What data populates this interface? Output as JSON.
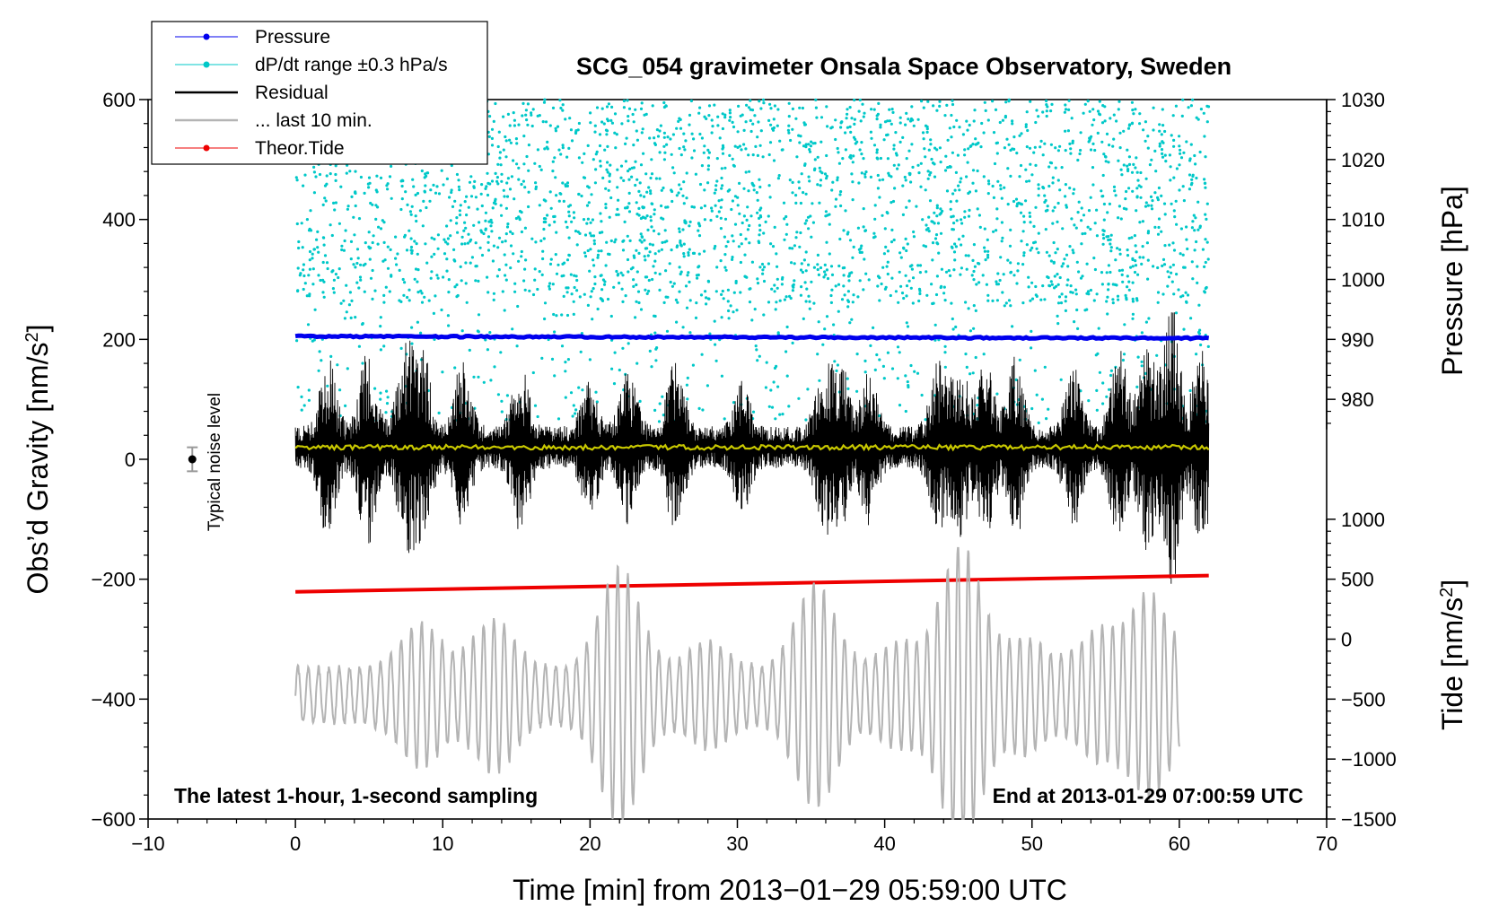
{
  "chart_data": {
    "type": "line",
    "title": "SCG_054 gravimeter Onsala Space Observatory, Sweden",
    "xlabel": "Time [min] from 2013−01−29 05:59:00 UTC",
    "ylabel": "Obs’d Gravity [nm/s²]",
    "ylabel_main": "Obs’d Gravity [nm/s",
    "ylabel_sup": "2",
    "ylabel_end": "]",
    "xlim": [
      -10,
      70
    ],
    "ylim": [
      -600,
      600
    ],
    "x_ticks": [
      -10,
      0,
      10,
      20,
      30,
      40,
      50,
      60,
      70
    ],
    "x_tick_labels": [
      "−10",
      "0",
      "10",
      "20",
      "30",
      "40",
      "50",
      "60",
      "70"
    ],
    "y_ticks": [
      -600,
      -400,
      -200,
      0,
      200,
      400,
      600
    ],
    "y_tick_labels": [
      "−600",
      "−400",
      "−200",
      "0",
      "200",
      "400",
      "600"
    ],
    "pressure_axis": {
      "label": "Pressure [hPa]",
      "ticks": [
        980,
        990,
        1000,
        1010,
        1020,
        1030
      ],
      "tick_labels": [
        "980",
        "990",
        "1000",
        "1010",
        "1020",
        "1030"
      ]
    },
    "tide_axis": {
      "label_main": "Tide [nm/s",
      "label_sup": "2",
      "label_end": "]",
      "ticks": [
        -1500,
        -1000,
        -500,
        0,
        500,
        1000
      ],
      "tick_labels": [
        "−1500",
        "−1000",
        "−500",
        "0",
        "500",
        "1000"
      ]
    },
    "legend": [
      {
        "label": "Pressure",
        "color": "#0000ee",
        "style": "line-dot"
      },
      {
        "label": "dP/dt range ±0.3 hPa/s",
        "color": "#00c8c8",
        "style": "line-dot"
      },
      {
        "label": "Residual",
        "color": "#000000",
        "style": "line"
      },
      {
        "label": "... last 10 min.",
        "color": "#b4b4b4",
        "style": "line"
      },
      {
        "label": "Theor.Tide",
        "color": "#ee0000",
        "style": "line-dot"
      }
    ],
    "legend_position": "top-left",
    "annotations": {
      "bottom_left": "The latest 1-hour, 1-second sampling",
      "bottom_right": "End at 2013-01-29 07:00:59 UTC",
      "noise_label": "Typical noise level"
    },
    "noise_marker": {
      "x": -7,
      "y": 0,
      "err": 20
    },
    "series": [
      {
        "name": "Pressure",
        "axis": "pressure",
        "x_range": [
          0,
          62
        ],
        "value_start": 990.5,
        "value_end": 990.2,
        "color": "#0000ee"
      },
      {
        "name": "dP/dt range ±0.3 hPa/s",
        "axis": "pressure",
        "x_range": [
          0,
          62
        ],
        "value_range": [
          975,
          1030
        ],
        "color": "#00c8c8"
      },
      {
        "name": "Residual",
        "axis": "gravity",
        "x_range": [
          0,
          62
        ],
        "value_range": [
          -215,
          245
        ],
        "center": 20,
        "color": "#000000"
      },
      {
        "name": "Residual trend",
        "axis": "gravity",
        "x_range": [
          0,
          62
        ],
        "value": 20,
        "color": "#c8c800"
      },
      {
        "name": "Theor.Tide",
        "axis": "tide",
        "x_range": [
          0,
          62
        ],
        "value_start": 395,
        "value_end": 530,
        "color": "#ee0000"
      },
      {
        "name": "... last 10 min.",
        "axis": "tide",
        "x_range": [
          0,
          60
        ],
        "value_range": [
          -1500,
          760
        ],
        "center": -470,
        "color": "#b4b4b4"
      }
    ]
  }
}
